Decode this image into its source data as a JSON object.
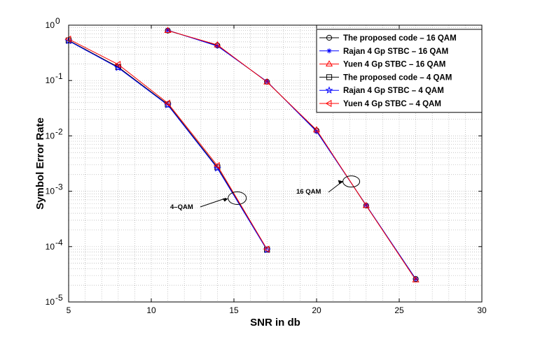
{
  "chart_data": {
    "type": "line",
    "yscale": "log",
    "xlabel": "SNR in db",
    "ylabel": "Symbol Error Rate",
    "xlim": [
      5,
      30
    ],
    "ylim": [
      1e-05,
      1
    ],
    "x_ticks": [
      5,
      10,
      15,
      20,
      25,
      30
    ],
    "y_ticks": [
      {
        "value": 1,
        "base": "10",
        "exp": "0"
      },
      {
        "value": 0.1,
        "base": "10",
        "exp": "-1"
      },
      {
        "value": 0.01,
        "base": "10",
        "exp": "-2"
      },
      {
        "value": 0.001,
        "base": "10",
        "exp": "-3"
      },
      {
        "value": 0.0001,
        "base": "10",
        "exp": "-4"
      },
      {
        "value": 1e-05,
        "base": "10",
        "exp": "-5"
      }
    ],
    "grid": true,
    "legend_position": "top-right",
    "series": [
      {
        "name": "The proposed code – 16 QAM",
        "color": "#000000",
        "marker": "circle",
        "x": [
          11,
          14,
          17,
          20,
          23,
          26
        ],
        "y": [
          0.8,
          0.43,
          0.095,
          0.0125,
          0.00055,
          2.6e-05
        ]
      },
      {
        "name": "Rajan 4 Gp STBC – 16 QAM",
        "color": "#0000ff",
        "marker": "asterisk",
        "x": [
          11,
          14,
          17,
          20,
          23,
          26
        ],
        "y": [
          0.81,
          0.42,
          0.096,
          0.012,
          0.00056,
          2.6e-05
        ]
      },
      {
        "name": "Yuen 4 Gp STBC – 16 QAM",
        "color": "#ff0000",
        "marker": "triangle-up",
        "x": [
          11,
          14,
          17,
          20,
          23,
          26
        ],
        "y": [
          0.8,
          0.44,
          0.094,
          0.0128,
          0.00055,
          2.5e-05
        ]
      },
      {
        "name": "The proposed code – 4 QAM",
        "color": "#000000",
        "marker": "square",
        "x": [
          5,
          8,
          11,
          14,
          17
        ],
        "y": [
          0.53,
          0.175,
          0.037,
          0.0027,
          8.8e-05
        ]
      },
      {
        "name": "Rajan 4 Gp STBC – 4 QAM",
        "color": "#0000ff",
        "marker": "star",
        "x": [
          5,
          8,
          11,
          14,
          17
        ],
        "y": [
          0.52,
          0.17,
          0.036,
          0.0026,
          8.7e-05
        ]
      },
      {
        "name": "Yuen 4 Gp STBC – 4 QAM",
        "color": "#ff0000",
        "marker": "triangle-left",
        "x": [
          5,
          8,
          11,
          14,
          17
        ],
        "y": [
          0.56,
          0.195,
          0.039,
          0.0029,
          9e-05
        ]
      }
    ],
    "annotations": [
      {
        "text": "4–QAM",
        "anchor_x": 15.2,
        "anchor_y": 0.00075
      },
      {
        "text": "16 QAM",
        "anchor_x": 22.1,
        "anchor_y": 0.0015
      }
    ]
  }
}
